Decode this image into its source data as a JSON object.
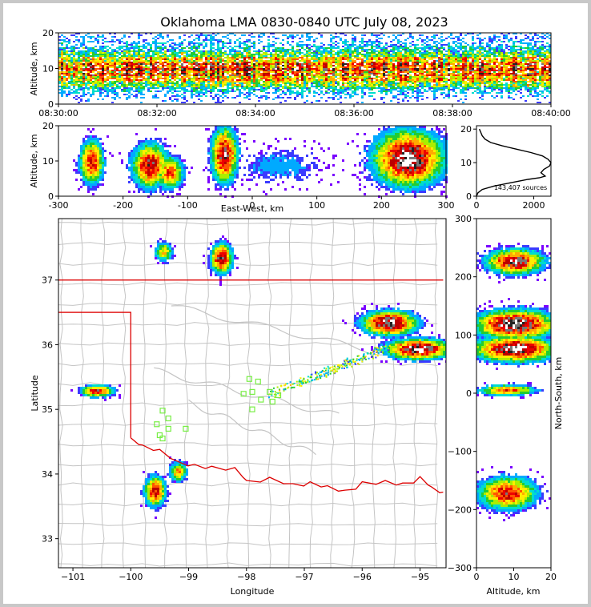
{
  "chart_data": {
    "title": "Oklahoma LMA 0830-0840 UTC July 08, 2023",
    "panels": [
      {
        "id": "time-height",
        "type": "heatmap",
        "xlabel": "",
        "ylabel": "Altitude, km",
        "x_tick_labels": [
          "08:30:00",
          "08:32:00",
          "08:34:00",
          "08:36:00",
          "08:38:00",
          "08:40:00"
        ],
        "x_tick_minutes": [
          0,
          2,
          4,
          6,
          8,
          10
        ],
        "xlim_minutes": [
          0,
          10
        ],
        "ylim": [
          0,
          20
        ],
        "y_ticks": [
          0,
          10,
          20
        ],
        "density_rows": [
          {
            "altitude": 2.5,
            "density": 0.3
          },
          {
            "altitude": 4,
            "density": 0.55
          },
          {
            "altitude": 5.5,
            "density": 0.9
          },
          {
            "altitude": 7,
            "density": 1.0
          },
          {
            "altitude": 8.5,
            "density": 1.0
          },
          {
            "altitude": 10,
            "density": 1.0
          },
          {
            "altitude": 11.5,
            "density": 1.0
          },
          {
            "altitude": 13,
            "density": 0.95
          },
          {
            "altitude": 14.5,
            "density": 0.8
          },
          {
            "altitude": 16,
            "density": 0.6
          },
          {
            "altitude": 17.5,
            "density": 0.45
          },
          {
            "altitude": 19,
            "density": 0.3
          }
        ]
      },
      {
        "id": "east-west-height",
        "type": "heatmap",
        "xlabel": "East-West, km",
        "ylabel": "Altitude, km",
        "xlim": [
          -300,
          300
        ],
        "x_ticks": [
          -300,
          -200,
          -100,
          0,
          100,
          200,
          300
        ],
        "ylim": [
          0,
          20
        ],
        "y_ticks": [
          0,
          10,
          20
        ],
        "clusters": [
          {
            "x": -250,
            "alt": 10,
            "sx": 12,
            "salt": 4,
            "peak": 0.8
          },
          {
            "x": -160,
            "alt": 9,
            "sx": 18,
            "salt": 4,
            "peak": 0.85
          },
          {
            "x": -130,
            "alt": 7,
            "sx": 14,
            "salt": 3,
            "peak": 0.7
          },
          {
            "x": -45,
            "alt": 12,
            "sx": 13,
            "salt": 5,
            "peak": 0.9
          },
          {
            "x": 240,
            "alt": 11,
            "sx": 35,
            "salt": 5,
            "peak": 1.0
          },
          {
            "x": 40,
            "alt": 9,
            "sx": 50,
            "salt": 4,
            "peak": 0.2
          }
        ]
      },
      {
        "id": "altitude-histogram",
        "type": "line",
        "annotation": "143,407 sources",
        "xlim": [
          0,
          2600
        ],
        "x_ticks": [
          0,
          2000
        ],
        "ylim": [
          0,
          21
        ],
        "y_ticks": [
          0,
          10,
          20
        ],
        "profile": [
          [
            0,
            0
          ],
          [
            50,
            1
          ],
          [
            200,
            2
          ],
          [
            600,
            3
          ],
          [
            1200,
            4
          ],
          [
            1800,
            5
          ],
          [
            2200,
            5.5
          ],
          [
            2400,
            6
          ],
          [
            2250,
            7
          ],
          [
            2350,
            8
          ],
          [
            2550,
            9
          ],
          [
            2600,
            10
          ],
          [
            2500,
            11
          ],
          [
            2300,
            12
          ],
          [
            1900,
            13
          ],
          [
            1400,
            14
          ],
          [
            900,
            15
          ],
          [
            500,
            16
          ],
          [
            300,
            17
          ],
          [
            200,
            18
          ],
          [
            150,
            19
          ],
          [
            100,
            20
          ]
        ]
      },
      {
        "id": "plan-view",
        "type": "heatmap",
        "xlabel": "Longitude",
        "ylabel": "Latitude",
        "xlim": [
          -101.25,
          -94.55
        ],
        "x_ticks": [
          -101,
          -100,
          -99,
          -98,
          -97,
          -96,
          -95
        ],
        "ylim": [
          32.55,
          37.95
        ],
        "y_ticks": [
          33,
          34,
          35,
          36,
          37
        ],
        "clusters": [
          {
            "lon": -98.45,
            "lat": 37.35,
            "slon": 0.12,
            "slat": 0.15,
            "peak": 0.9
          },
          {
            "lon": -99.45,
            "lat": 37.45,
            "slon": 0.1,
            "slat": 0.1,
            "peak": 0.55
          },
          {
            "lon": -95.55,
            "lat": 36.35,
            "slon": 0.3,
            "slat": 0.12,
            "peak": 1.0
          },
          {
            "lon": -95.05,
            "lat": 35.95,
            "slon": 0.35,
            "slat": 0.1,
            "peak": 1.0
          },
          {
            "lon": -100.6,
            "lat": 35.3,
            "slon": 0.18,
            "slat": 0.06,
            "peak": 0.8
          },
          {
            "lon": -99.6,
            "lat": 33.75,
            "slon": 0.12,
            "slat": 0.15,
            "peak": 0.8
          },
          {
            "lon": -99.2,
            "lat": 34.05,
            "slon": 0.1,
            "slat": 0.1,
            "peak": 0.6
          }
        ],
        "stations": [
          [
            -97.95,
            35.47
          ],
          [
            -97.8,
            35.43
          ],
          [
            -98.05,
            35.24
          ],
          [
            -97.9,
            35.27
          ],
          [
            -97.6,
            35.27
          ],
          [
            -97.45,
            35.22
          ],
          [
            -97.75,
            35.15
          ],
          [
            -97.55,
            35.12
          ],
          [
            -97.9,
            35.0
          ],
          [
            -99.45,
            34.98
          ],
          [
            -99.35,
            34.86
          ],
          [
            -99.55,
            34.77
          ],
          [
            -99.35,
            34.7
          ],
          [
            -99.05,
            34.7
          ],
          [
            -99.5,
            34.6
          ],
          [
            -99.45,
            34.55
          ]
        ]
      },
      {
        "id": "north-south-height",
        "type": "heatmap",
        "xlabel": "Altitude, km",
        "ylabel": "North-South, km",
        "xlim": [
          0,
          20
        ],
        "x_ticks": [
          0,
          10,
          20
        ],
        "ylim": [
          -300,
          300
        ],
        "y_ticks": [
          -300,
          -200,
          -100,
          0,
          100,
          200,
          300
        ],
        "clusters": [
          {
            "alt": 10,
            "y": 228,
            "salt": 5,
            "sy": 14,
            "peak": 0.9
          },
          {
            "alt": 10,
            "y": 120,
            "salt": 7,
            "sy": 16,
            "peak": 1.0
          },
          {
            "alt": 10,
            "y": 78,
            "salt": 7,
            "sy": 14,
            "peak": 1.0
          },
          {
            "alt": 8,
            "y": 7,
            "salt": 5,
            "sy": 6,
            "peak": 0.7
          },
          {
            "alt": 8,
            "y": -170,
            "salt": 5,
            "sy": 18,
            "peak": 0.8
          }
        ]
      }
    ]
  },
  "colors": {
    "state_border": "#dd0000",
    "county_lines": "#c4c4c4",
    "stations": "#77ee44",
    "background": "#ffffff"
  }
}
